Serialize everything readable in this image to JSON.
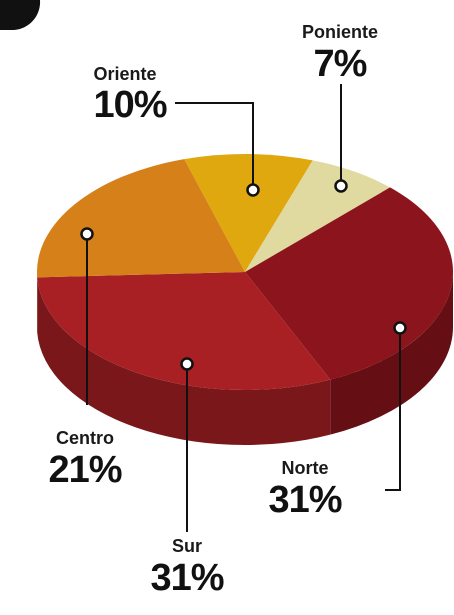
{
  "chart_data": {
    "type": "pie3d",
    "categories": [
      "Oriente",
      "Poniente",
      "Norte",
      "Sur",
      "Centro"
    ],
    "values": [
      10,
      7,
      31,
      31,
      21
    ],
    "value_labels": [
      "10%",
      "7%",
      "31%",
      "31%",
      "21%"
    ],
    "colors": [
      "#dfa80f",
      "#e0d9a0",
      "#8c141c",
      "#a82024",
      "#d6801a"
    ]
  }
}
